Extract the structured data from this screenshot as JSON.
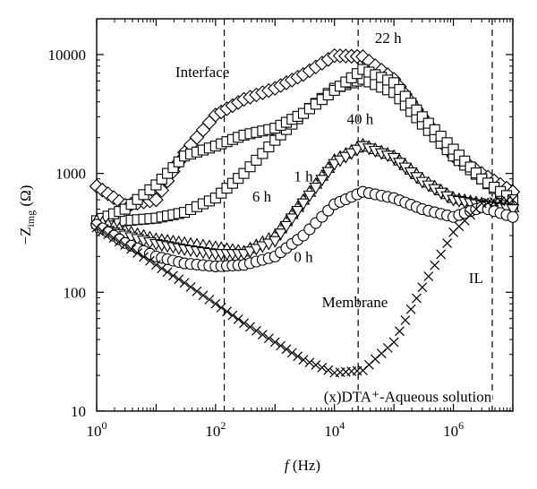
{
  "chart_data": {
    "type": "scatter",
    "x_scale": "log",
    "y_scale": "log",
    "xlim": [
      1,
      10000000
    ],
    "ylim": [
      10,
      20000
    ],
    "x_ticks": [
      {
        "value": 1,
        "base": "10",
        "exp": "0"
      },
      {
        "value": 100,
        "base": "10",
        "exp": "2"
      },
      {
        "value": 10000,
        "base": "10",
        "exp": "4"
      },
      {
        "value": 1000000,
        "base": "10",
        "exp": "6"
      }
    ],
    "y_ticks": [
      {
        "value": 10,
        "label": "10"
      },
      {
        "value": 100,
        "label": "100"
      },
      {
        "value": 1000,
        "label": "1000"
      },
      {
        "value": 10000,
        "label": "10000"
      }
    ],
    "xlabel": {
      "italic": "f",
      "rest": " (Hz)"
    },
    "ylabel": {
      "prefix": "−Z",
      "sub": "img",
      "suffix": " (Ω)"
    },
    "vlines": [
      140,
      25000,
      4500000
    ],
    "annotations": [
      {
        "id": "interface",
        "text": "Interface",
        "x": 60,
        "y": 6500
      },
      {
        "id": "membrane",
        "text": "Membrane",
        "x": 22000,
        "y": 75
      },
      {
        "id": "il",
        "text": "IL",
        "x": 2400000,
        "y": 120
      },
      {
        "id": "t22h",
        "text": "22 h",
        "x": 80000,
        "y": 12500
      },
      {
        "id": "t40h",
        "text": "40 h",
        "x": 27000,
        "y": 2600
      },
      {
        "id": "t6h",
        "text": "6 h",
        "x": 600,
        "y": 580
      },
      {
        "id": "t1h",
        "text": "1 h",
        "x": 3000,
        "y": 860
      },
      {
        "id": "t0h",
        "text": "0 h",
        "x": 3000,
        "y": 180
      },
      {
        "id": "aqueous",
        "text": "(x)DTA⁺-Aqueous solution",
        "x": 170000,
        "y": 12
      }
    ],
    "series": [
      {
        "marker": "diamond",
        "points": [
          [
            1,
            780
          ],
          [
            3,
            540
          ],
          [
            10,
            600
          ],
          [
            30,
            1500
          ],
          [
            100,
            3100
          ],
          [
            300,
            4200
          ],
          [
            1000,
            5200
          ],
          [
            3000,
            6800
          ],
          [
            10000,
            9800
          ],
          [
            30000,
            9600
          ],
          [
            100000,
            6200
          ],
          [
            300000,
            3000
          ],
          [
            1000000,
            1400
          ],
          [
            3000000,
            1000
          ],
          [
            10000000,
            700
          ]
        ]
      },
      {
        "marker": "square",
        "points": [
          [
            1,
            380
          ],
          [
            3,
            400
          ],
          [
            10,
            420
          ],
          [
            30,
            470
          ],
          [
            100,
            620
          ],
          [
            300,
            1000
          ],
          [
            1000,
            1900
          ],
          [
            3000,
            3200
          ],
          [
            10000,
            5200
          ],
          [
            30000,
            6200
          ],
          [
            100000,
            4800
          ],
          [
            300000,
            2600
          ],
          [
            1000000,
            1400
          ],
          [
            3000000,
            900
          ],
          [
            10000000,
            560
          ]
        ]
      },
      {
        "marker": "square_open",
        "points": [
          [
            1,
            400
          ],
          [
            3,
            500
          ],
          [
            10,
            800
          ],
          [
            30,
            1400
          ],
          [
            100,
            1700
          ],
          [
            300,
            2100
          ],
          [
            1000,
            2400
          ],
          [
            3000,
            3200
          ],
          [
            10000,
            5000
          ],
          [
            30000,
            7500
          ],
          [
            100000,
            5800
          ],
          [
            300000,
            3000
          ],
          [
            1000000,
            1600
          ],
          [
            3000000,
            900
          ],
          [
            10000000,
            600
          ]
        ]
      },
      {
        "marker": "triangle_up",
        "points": [
          [
            1,
            400
          ],
          [
            3,
            330
          ],
          [
            10,
            280
          ],
          [
            30,
            260
          ],
          [
            100,
            240
          ],
          [
            300,
            220
          ],
          [
            1000,
            300
          ],
          [
            3000,
            600
          ],
          [
            10000,
            1300
          ],
          [
            30000,
            1750
          ],
          [
            100000,
            1400
          ],
          [
            300000,
            900
          ],
          [
            1000000,
            620
          ],
          [
            3000000,
            560
          ],
          [
            10000000,
            520
          ]
        ]
      },
      {
        "marker": "triangle_down",
        "points": [
          [
            1,
            350
          ],
          [
            3,
            300
          ],
          [
            10,
            255
          ],
          [
            30,
            230
          ],
          [
            100,
            210
          ],
          [
            300,
            210
          ],
          [
            1000,
            270
          ],
          [
            3000,
            560
          ],
          [
            10000,
            1200
          ],
          [
            30000,
            1700
          ],
          [
            100000,
            1350
          ],
          [
            300000,
            850
          ],
          [
            1000000,
            600
          ],
          [
            3000000,
            540
          ],
          [
            10000000,
            500
          ]
        ]
      },
      {
        "marker": "circle",
        "points": [
          [
            1,
            370
          ],
          [
            3,
            260
          ],
          [
            10,
            200
          ],
          [
            30,
            175
          ],
          [
            100,
            165
          ],
          [
            300,
            170
          ],
          [
            1000,
            200
          ],
          [
            3000,
            300
          ],
          [
            10000,
            550
          ],
          [
            30000,
            700
          ],
          [
            100000,
            620
          ],
          [
            300000,
            500
          ],
          [
            1000000,
            430
          ],
          [
            3000000,
            520
          ],
          [
            10000000,
            430
          ]
        ]
      },
      {
        "marker": "x",
        "points": [
          [
            1,
            350
          ],
          [
            3,
            250
          ],
          [
            10,
            170
          ],
          [
            30,
            120
          ],
          [
            100,
            80
          ],
          [
            300,
            55
          ],
          [
            1000,
            38
          ],
          [
            3000,
            27
          ],
          [
            10000,
            21
          ],
          [
            30000,
            22
          ],
          [
            100000,
            38
          ],
          [
            300000,
            110
          ],
          [
            1000000,
            320
          ],
          [
            3000000,
            560
          ],
          [
            10000000,
            600
          ]
        ]
      }
    ]
  }
}
